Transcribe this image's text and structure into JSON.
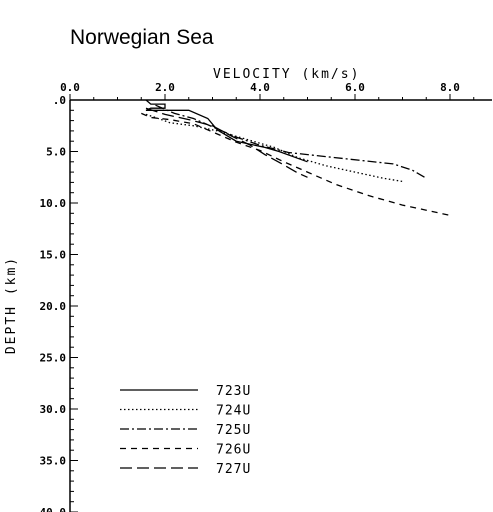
{
  "chart_data": {
    "type": "line",
    "title": "Norwegian Sea",
    "xlabel": "VELOCITY (km/s)",
    "ylabel": "DEPTH (km)",
    "xlim": [
      0,
      8.6
    ],
    "ylim": [
      0,
      40
    ],
    "x_axis_position": "top",
    "y_inverted": true,
    "x_major_ticks": [
      0,
      2,
      4,
      6,
      8
    ],
    "x_tick_labels": [
      "0.0",
      "2.0",
      "4.0",
      "6.0",
      "8.0"
    ],
    "y_major_ticks": [
      0,
      5,
      10,
      15,
      20,
      25,
      30,
      35,
      40
    ],
    "y_tick_labels": [
      ".0",
      "5.0",
      "10.0",
      "15.0",
      "20.0",
      "25.0",
      "30.0",
      "35.0",
      "40.0"
    ],
    "grid": false,
    "legend_position": "bottom-left",
    "series": [
      {
        "name": "723U",
        "dash": "solid",
        "points": [
          [
            1.6,
            0.0
          ],
          [
            1.7,
            0.4
          ],
          [
            2.0,
            0.4
          ],
          [
            2.0,
            0.8
          ],
          [
            1.7,
            0.8
          ],
          [
            1.6,
            1.0
          ],
          [
            2.5,
            1.0
          ],
          [
            2.9,
            1.8
          ],
          [
            3.1,
            2.9
          ],
          [
            3.5,
            4.0
          ],
          [
            4.1,
            4.6
          ],
          [
            4.4,
            5.0
          ],
          [
            4.7,
            5.5
          ],
          [
            5.0,
            6.0
          ]
        ]
      },
      {
        "name": "724U",
        "dash": "1.5,2.5",
        "points": [
          [
            1.6,
            1.4
          ],
          [
            1.8,
            1.7
          ],
          [
            2.1,
            2.2
          ],
          [
            2.6,
            2.5
          ],
          [
            3.1,
            3.0
          ],
          [
            3.7,
            3.8
          ],
          [
            4.3,
            4.6
          ],
          [
            4.8,
            5.6
          ],
          [
            5.4,
            6.4
          ],
          [
            6.0,
            7.0
          ],
          [
            6.6,
            7.6
          ],
          [
            7.0,
            7.9
          ]
        ]
      },
      {
        "name": "725U",
        "dash": "9,3,2,3",
        "points": [
          [
            1.8,
            0.5
          ],
          [
            2.2,
            1.3
          ],
          [
            2.6,
            1.8
          ],
          [
            3.0,
            2.6
          ],
          [
            3.5,
            3.6
          ],
          [
            4.0,
            4.4
          ],
          [
            4.6,
            5.1
          ],
          [
            5.4,
            5.5
          ],
          [
            6.2,
            5.9
          ],
          [
            6.8,
            6.2
          ],
          [
            7.2,
            6.8
          ],
          [
            7.5,
            7.6
          ]
        ]
      },
      {
        "name": "726U",
        "dash": "6,5",
        "points": [
          [
            1.5,
            1.3
          ],
          [
            1.7,
            1.7
          ],
          [
            2.1,
            1.9
          ],
          [
            2.6,
            2.3
          ],
          [
            3.1,
            3.3
          ],
          [
            3.5,
            4.1
          ],
          [
            4.0,
            4.9
          ],
          [
            4.5,
            6.0
          ],
          [
            5.0,
            7.0
          ],
          [
            5.6,
            8.2
          ],
          [
            6.3,
            9.3
          ],
          [
            7.0,
            10.2
          ],
          [
            7.5,
            10.7
          ],
          [
            8.0,
            11.2
          ]
        ]
      },
      {
        "name": "727U",
        "dash": "12,5",
        "points": [
          [
            1.6,
            0.8
          ],
          [
            2.0,
            1.4
          ],
          [
            2.5,
            1.9
          ],
          [
            3.0,
            2.5
          ],
          [
            3.4,
            3.5
          ],
          [
            3.8,
            4.4
          ],
          [
            4.1,
            5.3
          ],
          [
            4.5,
            6.3
          ],
          [
            4.8,
            7.1
          ],
          [
            5.0,
            7.5
          ]
        ]
      }
    ]
  }
}
